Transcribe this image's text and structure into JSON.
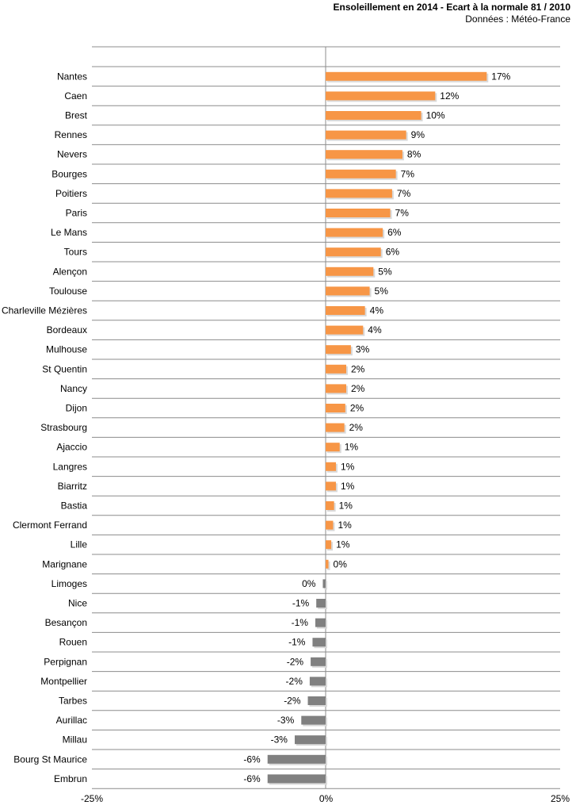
{
  "chart_data": {
    "type": "bar",
    "orientation": "horizontal",
    "title": "Ensoleillement  en 2014 - Ecart à la normale 81 / 2010",
    "subtitle": "Données : Météo-France",
    "xlim": [
      -25,
      25
    ],
    "x_tick_labels": [
      "-25%",
      "0%",
      "25%"
    ],
    "x_ticks": [
      -25,
      0,
      25
    ],
    "value_suffix": "%",
    "positive_color": "#f79646",
    "negative_color": "#808080",
    "categories": [
      "Nantes",
      "Caen",
      "Brest",
      "Rennes",
      "Nevers",
      "Bourges",
      "Poitiers",
      "Paris",
      "Le Mans",
      "Tours",
      "Alençon",
      "Toulouse",
      "Charleville Mézières",
      "Bordeaux",
      "Mulhouse",
      "St Quentin",
      "Nancy",
      "Dijon",
      "Strasbourg",
      "Ajaccio",
      "Langres",
      "Biarritz",
      "Bastia",
      "Clermont Ferrand",
      "Lille",
      "Marignane",
      "Limoges",
      "Nice",
      "Besançon",
      "Rouen",
      "Perpignan",
      "Montpellier",
      "Tarbes",
      "Aurillac",
      "Millau",
      "Bourg St Maurice",
      "Embrun"
    ],
    "values": [
      17.2,
      11.7,
      10.2,
      8.6,
      8.2,
      7.5,
      7.1,
      6.9,
      6.1,
      5.9,
      5.1,
      4.7,
      4.2,
      4.0,
      2.7,
      2.2,
      2.2,
      2.1,
      2.0,
      1.5,
      1.1,
      1.1,
      0.9,
      0.8,
      0.6,
      0.3,
      -0.3,
      -1.0,
      -1.1,
      -1.4,
      -1.6,
      -1.7,
      -1.9,
      -2.6,
      -3.3,
      -6.2,
      -6.2
    ],
    "value_labels": [
      "17%",
      "12%",
      "10%",
      "9%",
      "8%",
      "7%",
      "7%",
      "7%",
      "6%",
      "6%",
      "5%",
      "5%",
      "4%",
      "4%",
      "3%",
      "2%",
      "2%",
      "2%",
      "2%",
      "1%",
      "1%",
      "1%",
      "1%",
      "1%",
      "1%",
      "0%",
      "0%",
      "-1%",
      "-1%",
      "-1%",
      "-2%",
      "-2%",
      "-2%",
      "-3%",
      "-3%",
      "-6%",
      "-6%"
    ]
  }
}
